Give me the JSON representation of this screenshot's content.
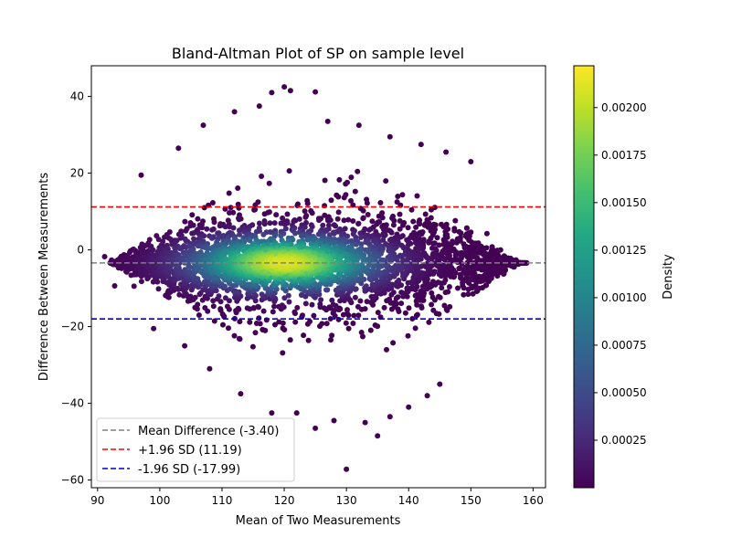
{
  "chart_data": {
    "type": "scatter",
    "title": "Bland-Altman Plot of SP on sample level",
    "xlabel": "Mean of Two Measurements",
    "ylabel": "Difference Between Measurements",
    "xlim": [
      89,
      162
    ],
    "ylim": [
      -62,
      48
    ],
    "xticks": [
      90,
      100,
      110,
      120,
      130,
      140,
      150,
      160
    ],
    "yticks": [
      -60,
      -40,
      -20,
      0,
      20,
      40
    ],
    "grid": false,
    "colormap": "viridis",
    "colorbar": {
      "label": "Density",
      "range": [
        0.0,
        0.00222
      ],
      "ticks": [
        0.00025,
        0.0005,
        0.00075,
        0.001,
        0.00125,
        0.0015,
        0.00175,
        0.002
      ],
      "tick_labels": [
        "0.00025",
        "0.00050",
        "0.00075",
        "0.00100",
        "0.00125",
        "0.00150",
        "0.00175",
        "0.00200"
      ]
    },
    "reference_lines": [
      {
        "name": "Mean Difference (-3.40)",
        "y": -3.4,
        "color": "#808080"
      },
      {
        "name": "+1.96 SD (11.19)",
        "y": 11.19,
        "color": "#ff0000"
      },
      {
        "name": "-1.96 SD (-17.99)",
        "y": -17.99,
        "color": "#0000cc"
      }
    ],
    "legend_position": "lower-left",
    "point_cloud": {
      "mean_center": 120,
      "diff_center": -3.4,
      "x_range": [
        92,
        159
      ],
      "boundary_left_x": 92,
      "boundary_right_x": 158,
      "outlier_points": [
        [
          120,
          42.5
        ],
        [
          121,
          41.5
        ],
        [
          125,
          41.2
        ],
        [
          118,
          41.0
        ],
        [
          116,
          37.5
        ],
        [
          127,
          33.5
        ],
        [
          132,
          32.5
        ],
        [
          107,
          32.5
        ],
        [
          137,
          29.5
        ],
        [
          103,
          26.5
        ],
        [
          142,
          27.5
        ],
        [
          146,
          25.5
        ],
        [
          150,
          23.0
        ],
        [
          97,
          19.5
        ],
        [
          112,
          36.0
        ],
        [
          130,
          -57.2
        ],
        [
          118,
          -42.5
        ],
        [
          125,
          -46.5
        ],
        [
          135,
          -48.5
        ],
        [
          133,
          -45.0
        ],
        [
          128,
          -44.5
        ],
        [
          140,
          -41.0
        ],
        [
          122,
          -42.5
        ],
        [
          145,
          -35.0
        ],
        [
          108,
          -31.0
        ],
        [
          99,
          -20.5
        ],
        [
          104,
          -25.0
        ],
        [
          113,
          -37.5
        ],
        [
          137,
          -43.5
        ],
        [
          143,
          -38.0
        ]
      ]
    }
  }
}
